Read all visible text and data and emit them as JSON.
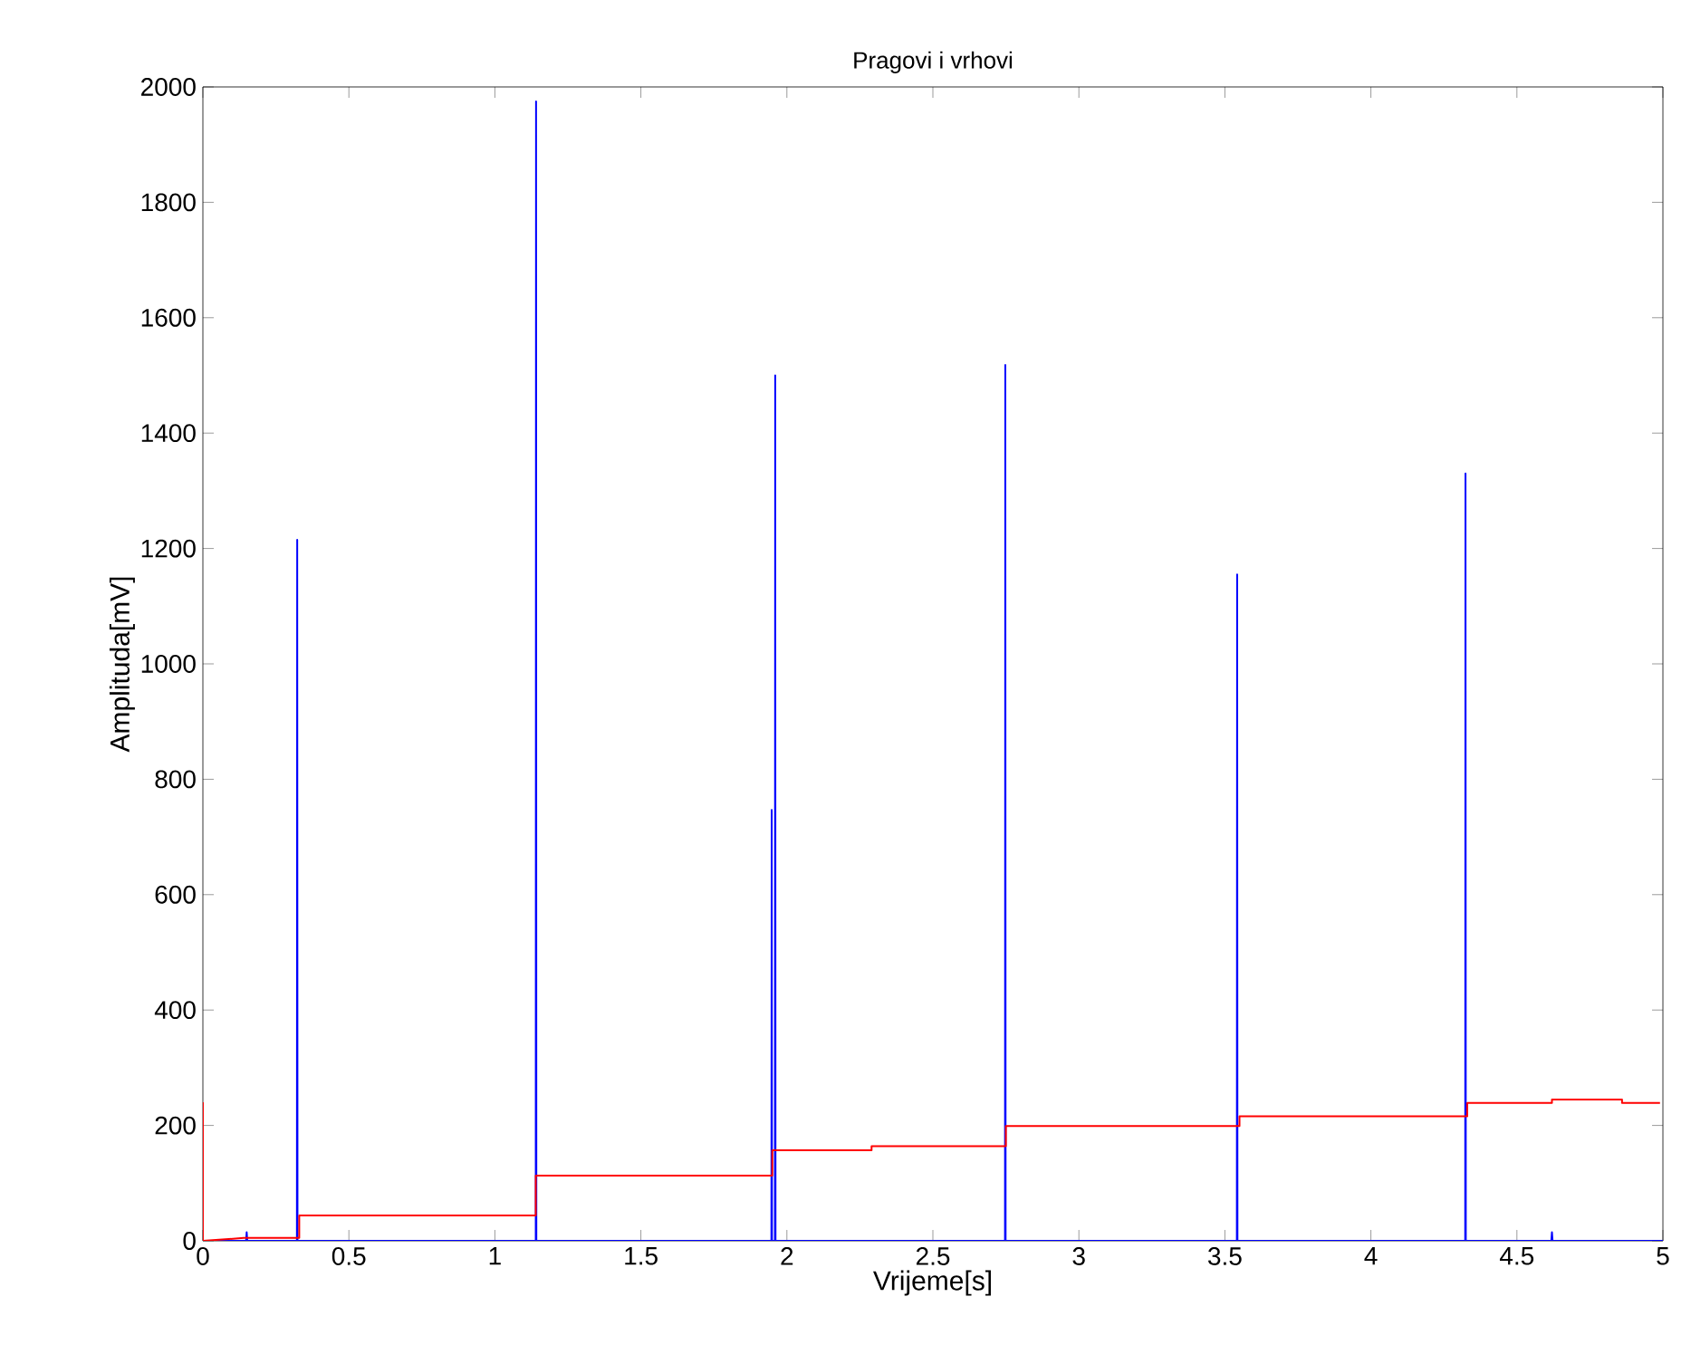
{
  "chart_data": {
    "type": "line",
    "title": "Pragovi i vrhovi",
    "xlabel": "Vrijeme[s]",
    "ylabel": "Amplituda[mV]",
    "xlim": [
      0,
      5
    ],
    "ylim": [
      0,
      2000
    ],
    "xticks": [
      0,
      0.5,
      1,
      1.5,
      2,
      2.5,
      3,
      3.5,
      4,
      4.5,
      5
    ],
    "yticks": [
      0,
      200,
      400,
      600,
      800,
      1000,
      1200,
      1400,
      1600,
      1800,
      2000
    ],
    "series": [
      {
        "color": "#0000ff",
        "x": [
          0,
          0.148,
          0.15,
          0.152,
          0.322,
          0.323,
          0.324,
          1.14,
          1.141,
          1.142,
          1.947,
          1.948,
          1.949,
          1.959,
          1.96,
          1.961,
          2.747,
          2.748,
          2.749,
          3.541,
          3.542,
          3.543,
          4.323,
          4.324,
          4.325,
          4.618,
          4.62,
          4.622,
          5
        ],
        "values": [
          0,
          0,
          15,
          0,
          0,
          1215,
          0,
          0,
          1975,
          0,
          0,
          747,
          0,
          0,
          1500,
          0,
          0,
          1518,
          0,
          0,
          1155,
          0,
          0,
          1330,
          0,
          0,
          15,
          0,
          0
        ]
      },
      {
        "color": "#ff0000",
        "x": [
          0,
          0,
          0.14,
          0.33,
          0.33,
          1.14,
          1.14,
          1.95,
          1.95,
          2.29,
          2.29,
          2.75,
          2.75,
          3.55,
          3.55,
          4.33,
          4.33,
          4.62,
          4.62,
          4.86,
          4.86,
          4.99
        ],
        "values": [
          240,
          0,
          5,
          5,
          44,
          44,
          113,
          113,
          157,
          157,
          164,
          164,
          199,
          199,
          216,
          216,
          239,
          239,
          245,
          245,
          239,
          239
        ]
      }
    ]
  }
}
